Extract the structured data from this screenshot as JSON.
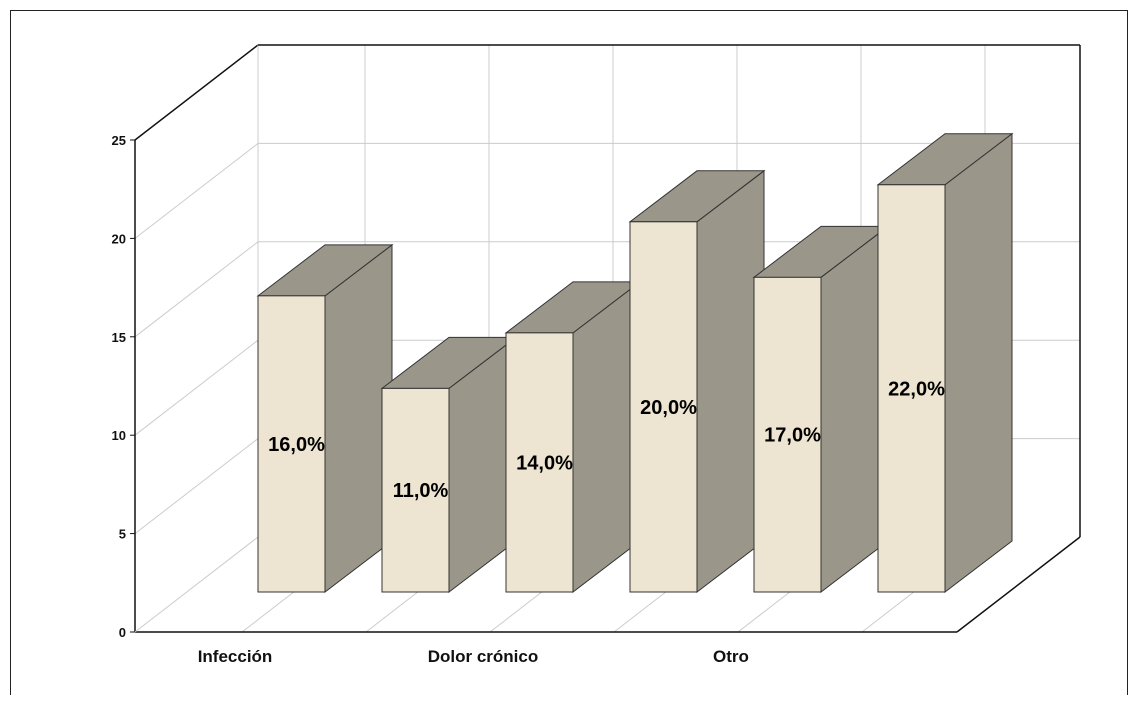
{
  "chart_data": {
    "type": "bar",
    "categories": [
      "Infección",
      "",
      "Dolor crónico",
      "",
      "Otro",
      ""
    ],
    "values": [
      16.0,
      11.0,
      14.0,
      20.0,
      17.0,
      22.0
    ],
    "data_labels": [
      "16,0%",
      "11,0%",
      "14,0%",
      "20,0%",
      "17,0%",
      "22,0%"
    ],
    "visible_category_labels": [
      "Infección",
      "Dolor crónico",
      "Otro"
    ],
    "y_ticks": [
      0,
      5,
      10,
      15,
      20,
      25
    ],
    "ylim": [
      0,
      25
    ],
    "title": "",
    "xlabel": "",
    "ylabel": "",
    "grid": true,
    "style": "3d",
    "colors": {
      "bar_front": "#ede5d1",
      "bar_side": "#9a978a",
      "bar_top": "#9a978a",
      "edge": "#333333",
      "grid": "#cccccc",
      "axis": "#111111"
    }
  }
}
